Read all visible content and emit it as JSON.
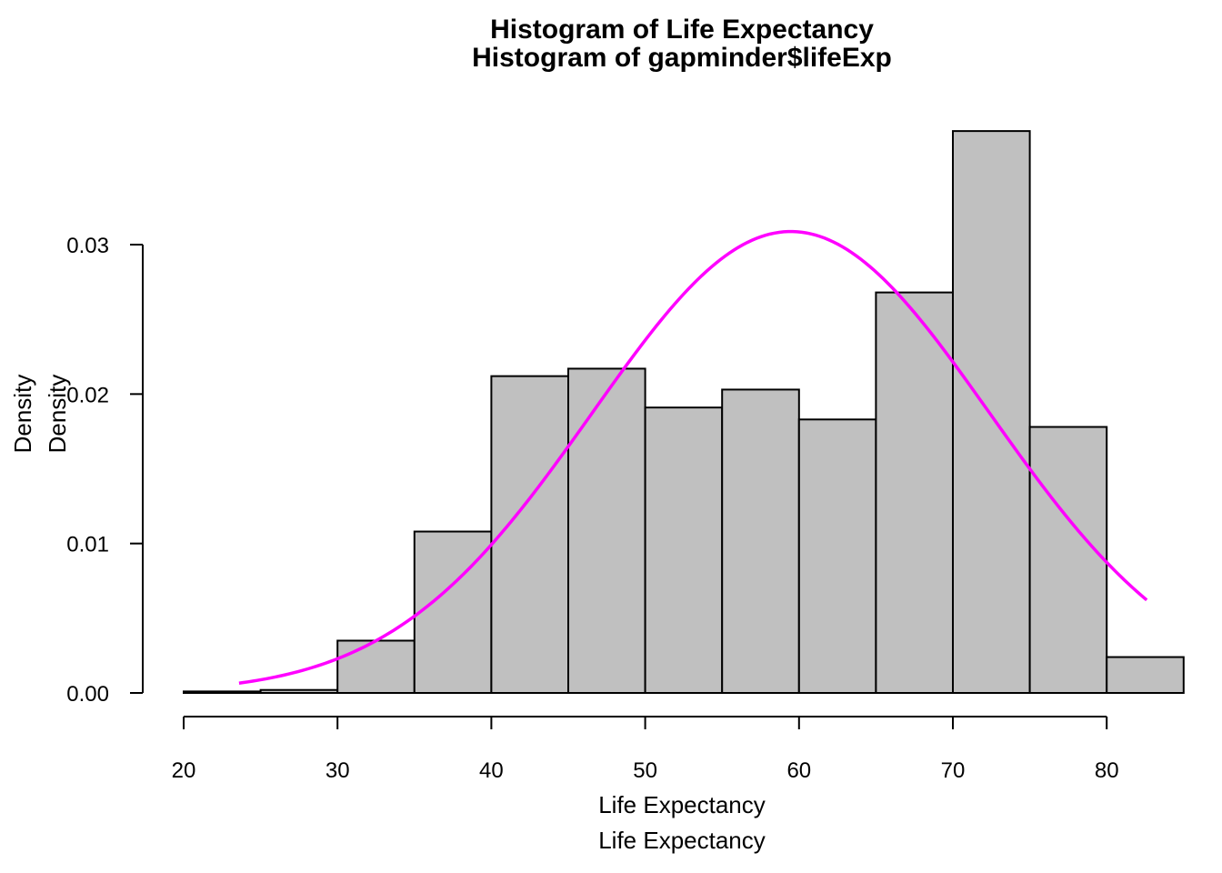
{
  "chart_data": {
    "type": "bar",
    "title": "Histogram of Life Expectancy",
    "subtitle": "Histogram of gapminder$lifeExp",
    "xlabel": "Life Expectancy",
    "xlabel2": "Life Expectancy",
    "ylabel": "Density",
    "ylabel2": "Density",
    "xlim": [
      20,
      85
    ],
    "ylim": [
      0,
      0.03
    ],
    "x_ticks": [
      "20",
      "30",
      "40",
      "50",
      "60",
      "70",
      "80"
    ],
    "y_ticks": [
      "0.00",
      "0.01",
      "0.02",
      "0.03"
    ],
    "bins": [
      {
        "from": 20,
        "to": 25,
        "density": 0.0001
      },
      {
        "from": 25,
        "to": 30,
        "density": 0.0002
      },
      {
        "from": 30,
        "to": 35,
        "density": 0.0035
      },
      {
        "from": 35,
        "to": 40,
        "density": 0.0108
      },
      {
        "from": 40,
        "to": 45,
        "density": 0.0212
      },
      {
        "from": 45,
        "to": 50,
        "density": 0.0217
      },
      {
        "from": 50,
        "to": 55,
        "density": 0.0191
      },
      {
        "from": 55,
        "to": 60,
        "density": 0.0203
      },
      {
        "from": 60,
        "to": 65,
        "density": 0.0183
      },
      {
        "from": 65,
        "to": 70,
        "density": 0.0268
      },
      {
        "from": 70,
        "to": 75,
        "density": 0.0376
      },
      {
        "from": 75,
        "to": 80,
        "density": 0.0178
      },
      {
        "from": 80,
        "to": 85,
        "density": 0.0024
      }
    ],
    "curve": {
      "type": "normal-density",
      "mean": 59.47,
      "sd": 12.92,
      "x_range": [
        23.6,
        82.6
      ],
      "color": "#ff00ff"
    },
    "bar_fill": "#c0c0c0",
    "grid": false
  }
}
